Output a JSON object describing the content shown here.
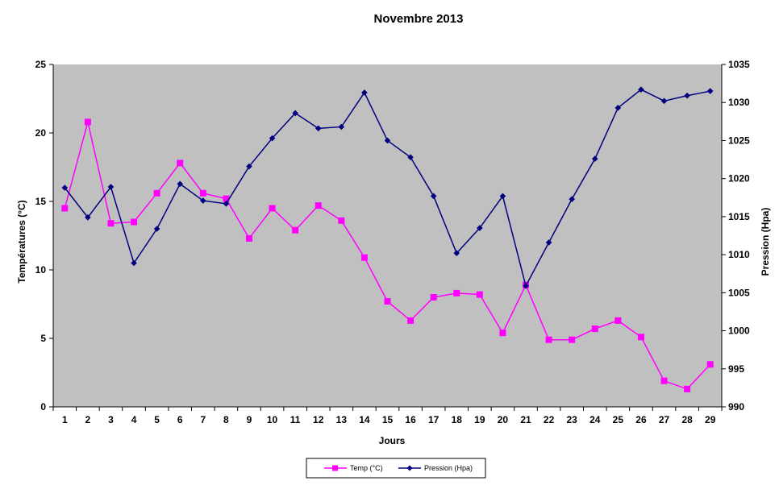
{
  "chart_data": {
    "type": "line",
    "title": "Novembre 2013",
    "xlabel": "Jours",
    "ylabel_left": "Températures (°C)",
    "ylabel_right": "Pression (Hpa)",
    "x": [
      1,
      2,
      3,
      4,
      5,
      6,
      7,
      8,
      9,
      10,
      11,
      12,
      13,
      14,
      15,
      16,
      17,
      18,
      19,
      20,
      21,
      22,
      23,
      24,
      25,
      26,
      27,
      28,
      29
    ],
    "y_left_ticks": [
      "0",
      "5",
      "10",
      "15",
      "20",
      "25"
    ],
    "y_right_ticks": [
      "990",
      "995",
      "1000",
      "1005",
      "1010",
      "1015",
      "1020",
      "1025",
      "1030",
      "1035"
    ],
    "ylim_left": [
      0,
      25
    ],
    "ylim_right": [
      990,
      1035
    ],
    "grid": false,
    "plot_background": "#c0c0c0",
    "legend_position": "bottom",
    "series": [
      {
        "name": "Temp (°C)",
        "axis": "left",
        "color": "#ff00ff",
        "marker": "square",
        "values": [
          14.5,
          20.8,
          13.4,
          13.5,
          15.6,
          17.8,
          15.6,
          15.2,
          12.3,
          14.5,
          12.9,
          14.7,
          13.6,
          10.9,
          7.7,
          6.3,
          8.0,
          8.3,
          8.2,
          5.4,
          8.9,
          4.9,
          4.9,
          5.7,
          6.3,
          5.1,
          1.9,
          1.3,
          3.1
        ]
      },
      {
        "name": "Pression (Hpa)",
        "axis": "right",
        "color": "#000080",
        "marker": "diamond",
        "values": [
          1018.8,
          1014.9,
          1018.9,
          1008.9,
          1013.4,
          1019.3,
          1017.1,
          1016.7,
          1021.6,
          1025.3,
          1028.6,
          1026.6,
          1026.8,
          1031.3,
          1025.0,
          1022.8,
          1017.7,
          1010.2,
          1013.5,
          1017.7,
          1005.9,
          1011.6,
          1017.3,
          1022.6,
          1029.3,
          1031.7,
          1030.2,
          1030.9,
          1031.5
        ]
      }
    ]
  }
}
